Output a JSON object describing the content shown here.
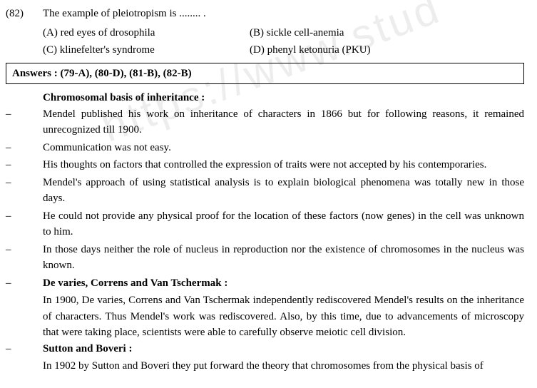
{
  "question": {
    "number": "(82)",
    "text": "The example of pleiotropism is ........ .",
    "optA": "(A)  red eyes of drosophila",
    "optB": "(B)  sickle cell-anemia",
    "optC": "(C)  klinefelter's syndrome",
    "optD": "(D)  phenyl ketonuria (PKU)"
  },
  "answers": "Answers  :  (79-A), (80-D), (81-B), (82-B)",
  "heading1": "Chromosomal  basis  of  inheritance  :",
  "bullets": {
    "b1": "Mendel published his work on inheritance of characters in 1866 but for  following reasons, it remained unrecognized till 1900.",
    "b2": "Communication was not easy.",
    "b3": "His thoughts on factors that controlled the expression of traits were not accepted by his contemporaries.",
    "b4": "Mendel's approach of using statistical analysis is to explain biological phenomena was totally new in those days.",
    "b5": "He could not provide any physical proof for the location of these factors (now genes) in the cell was unknown to him.",
    "b6": "In those days neither the role of nucleus in reproduction nor the existence of  chromosomes in the nucleus was known."
  },
  "heading2": "De  varies,  Correns  and  Van  Tschermak  :",
  "para2": "In 1900, De varies, Correns and Van Tschermak independently rediscovered Mendel's results on the inheritance of characters. Thus Mendel's work was rediscovered. Also, by this time, due to advancements of microscopy that were taking place, scientists were able to carefully observe meiotic cell division.",
  "heading3": "Sutton  and  Boveri  :",
  "para3": "In 1902 by Sutton and Boveri they put forward the theory that chromosomes from the physical basis of",
  "dash": "–",
  "watermark": "https://www.stud"
}
